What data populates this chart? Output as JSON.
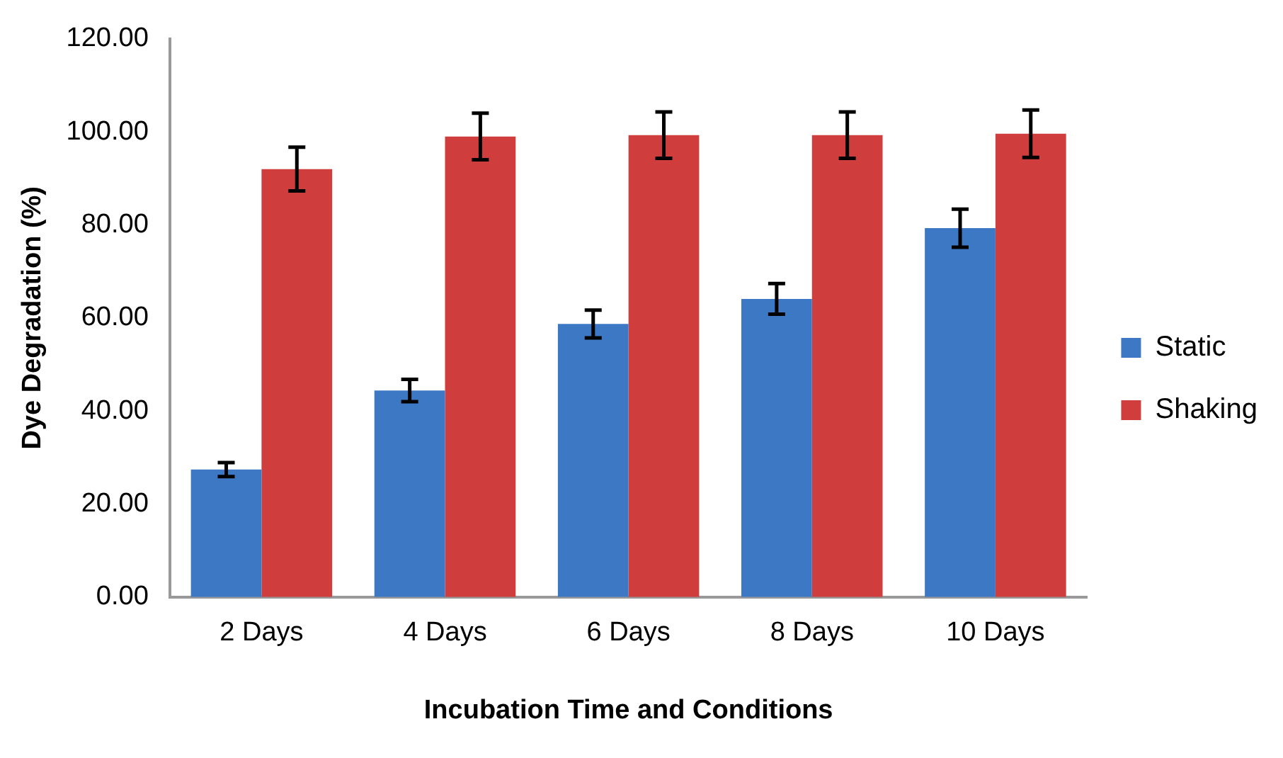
{
  "chart_data": {
    "type": "bar",
    "xlabel": "Incubation Time and Conditions",
    "ylabel": "Dye Degradation (%)",
    "categories": [
      "2 Days",
      "4 Days",
      "6 Days",
      "8 Days",
      "10 Days"
    ],
    "series": [
      {
        "name": "Static",
        "color": "#3d78c4",
        "values": [
          27.4,
          44.4,
          58.7,
          64.1,
          79.3
        ],
        "errors": [
          1.5,
          2.4,
          3.0,
          3.3,
          4.1
        ]
      },
      {
        "name": "Shaking",
        "color": "#cf3e3c",
        "values": [
          92.0,
          99.0,
          99.3,
          99.3,
          99.6
        ],
        "errors": [
          4.7,
          5.0,
          5.0,
          5.0,
          5.1
        ]
      }
    ],
    "ylim": [
      0,
      120
    ],
    "yticks": [
      {
        "value": 0,
        "label": "0.00"
      },
      {
        "value": 20,
        "label": "20.00"
      },
      {
        "value": 40,
        "label": "40.00"
      },
      {
        "value": 60,
        "label": "60.00"
      },
      {
        "value": 80,
        "label": "80.00"
      },
      {
        "value": 100,
        "label": "100.00"
      },
      {
        "value": 120,
        "label": "120.00"
      }
    ],
    "grid": false,
    "legend": "right"
  }
}
